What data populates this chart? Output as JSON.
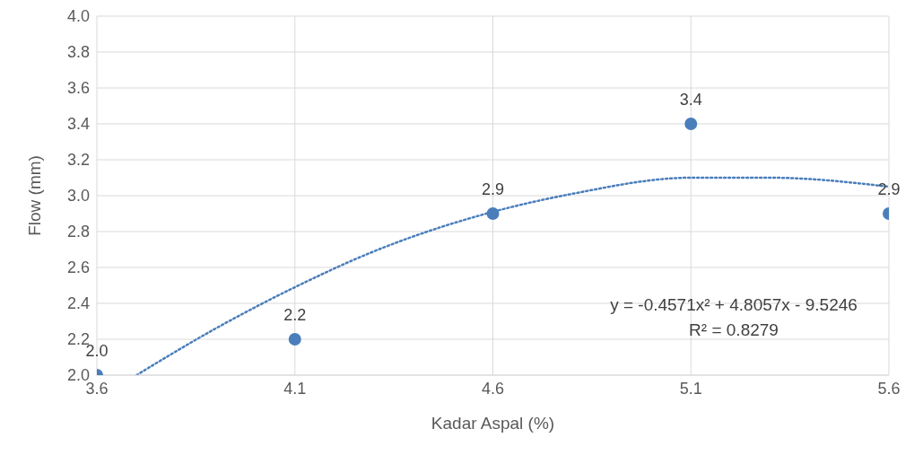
{
  "chart_data": {
    "type": "scatter",
    "xlabel": "Kadar Aspal (%)",
    "ylabel": "Flow (mm)",
    "grid": true,
    "xlim": [
      3.6,
      5.6
    ],
    "xticks": [
      3.6,
      4.1,
      4.6,
      5.1,
      5.6
    ],
    "ylim": [
      2.0,
      4.0
    ],
    "yticks": [
      {
        "value": 2.0,
        "label": "2.0"
      },
      {
        "value": 2.2,
        "label": "2.2"
      },
      {
        "value": 2.4,
        "label": "2.4"
      },
      {
        "value": 2.6,
        "label": "2.6"
      },
      {
        "value": 2.8,
        "label": "2.8"
      },
      {
        "value": 3.0,
        "label": "3.0"
      },
      {
        "value": 3.2,
        "label": "3.2"
      },
      {
        "value": 3.4,
        "label": "3.4"
      },
      {
        "value": 3.6,
        "label": "3.6"
      },
      {
        "value": 3.8,
        "label": "3.8"
      },
      {
        "value": 4.0,
        "label": "4.0"
      }
    ],
    "series": [
      {
        "color": "#4a7ebb",
        "marker": "circle",
        "x": [
          3.6,
          4.1,
          4.6,
          5.1,
          5.6
        ],
        "values": [
          2.0,
          2.2,
          2.9,
          3.4,
          2.9
        ],
        "value_labels": [
          "2.0",
          "2.2",
          "2.9",
          "3.4",
          "2.9"
        ]
      },
      {
        "type": "line",
        "color": "#4a7ebb",
        "marker": "none",
        "line_style": "dotted",
        "x": [
          3.7,
          3.9,
          4.1,
          4.3,
          4.6,
          4.8,
          5.1,
          5.3,
          5.6
        ],
        "values": [
          2.0,
          2.26,
          2.49,
          2.69,
          2.91,
          3.01,
          3.1,
          3.1,
          3.05
        ]
      }
    ],
    "annotations": [
      "y = -0.4571x² + 4.8057x - 9.5246",
      "R² = 0.8279"
    ]
  }
}
